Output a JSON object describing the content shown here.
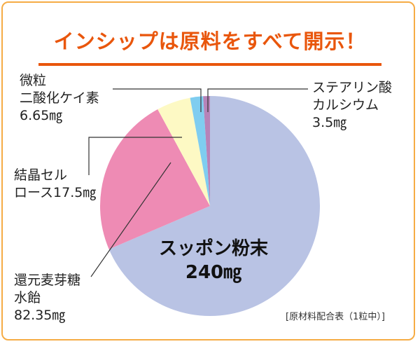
{
  "title": "インシップは原料をすべて開示！",
  "note": "[原材料配合表（1粒中）]",
  "chart_data": {
    "type": "pie",
    "start": "top",
    "direction": "clockwise",
    "slices": [
      {
        "name": "スッポン粉末",
        "label_line1": "スッポン粉末",
        "label_line2": "240㎎",
        "value": 240,
        "unit": "mg",
        "color": "#b9c3e4"
      },
      {
        "name": "還元麦芽糖水飴",
        "label_line1": "還元麦芽糖",
        "label_line2": "水飴",
        "label_line3": "82.35㎎",
        "value": 82.35,
        "unit": "mg",
        "color": "#ee8bb4"
      },
      {
        "name": "結晶セルロース",
        "label_line1": "結晶セル",
        "label_line2": "ロース17.5㎎",
        "value": 17.5,
        "unit": "mg",
        "color": "#fdf9c4"
      },
      {
        "name": "微粒二酸化ケイ素",
        "label_line1": "微粒",
        "label_line2": "二酸化ケイ素",
        "label_line3": "6.65㎎",
        "value": 6.65,
        "unit": "mg",
        "color": "#7fcdf0"
      },
      {
        "name": "ステアリン酸カルシウム",
        "label_line1": "ステアリン酸",
        "label_line2": "カルシウム",
        "label_line3": "3.5㎎",
        "value": 3.5,
        "unit": "mg",
        "color": "#b783b8"
      }
    ]
  }
}
